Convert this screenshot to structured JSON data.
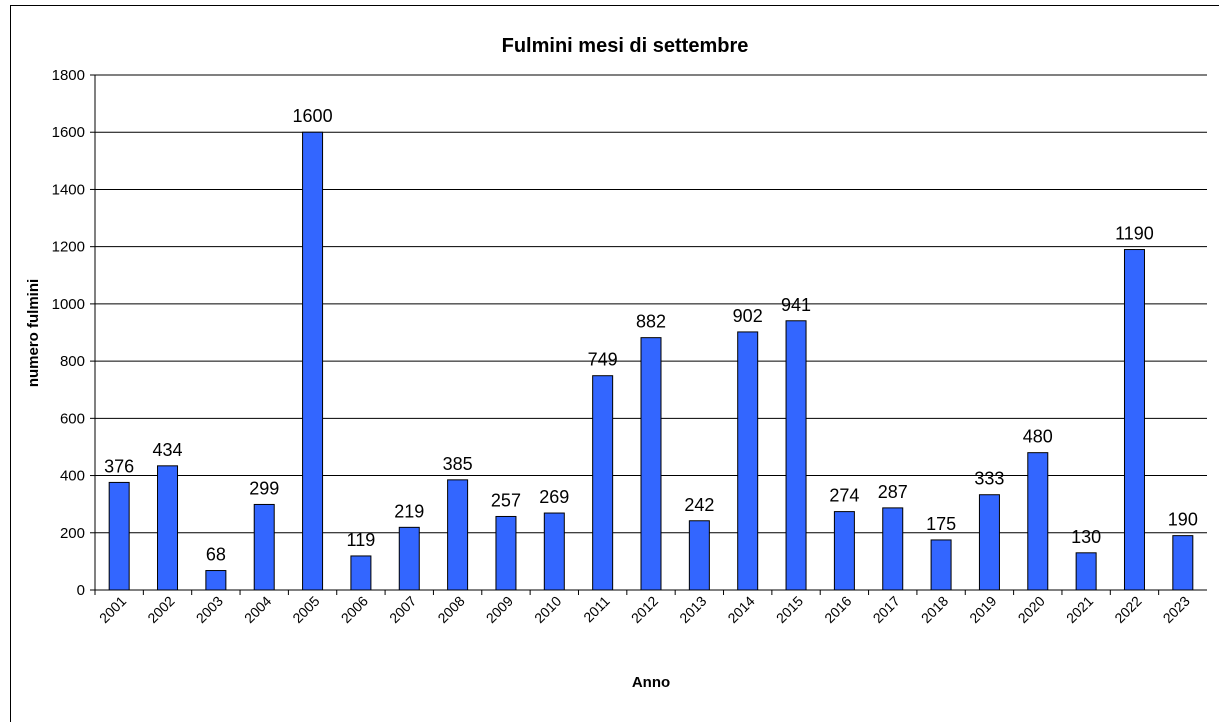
{
  "chart_data": {
    "type": "bar",
    "title": "Fulmini mesi di settembre",
    "x_label": "Anno",
    "y_label": "numero fulmini",
    "categories": [
      "2001",
      "2002",
      "2003",
      "2004",
      "2005",
      "2006",
      "2007",
      "2008",
      "2009",
      "2010",
      "2011",
      "2012",
      "2013",
      "2014",
      "2015",
      "2016",
      "2017",
      "2018",
      "2019",
      "2020",
      "2021",
      "2022",
      "2023"
    ],
    "values": [
      376,
      434,
      68,
      299,
      1600,
      119,
      219,
      385,
      257,
      269,
      749,
      882,
      242,
      902,
      941,
      274,
      287,
      175,
      333,
      480,
      130,
      1190,
      190
    ],
    "color": "#3366ff",
    "ylim": [
      0,
      1800
    ],
    "yticks": [
      0,
      200,
      400,
      600,
      800,
      1000,
      1200,
      1400,
      1600,
      1800
    ],
    "grid": true
  }
}
